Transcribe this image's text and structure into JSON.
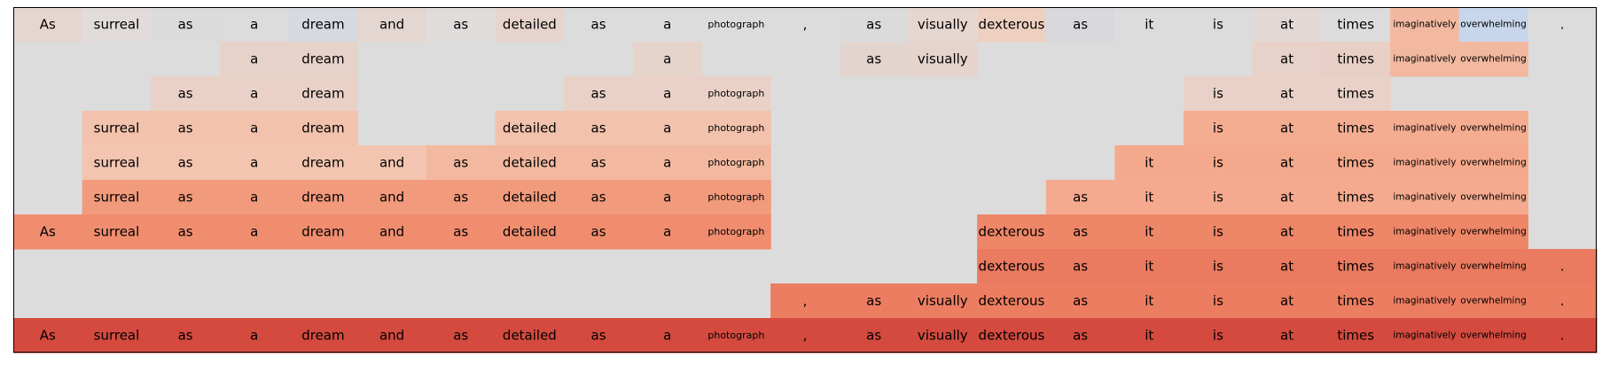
{
  "chart_data": {
    "type": "heatmap",
    "title": "",
    "xlabel": "",
    "ylabel": "",
    "tokens": [
      "As",
      "surreal",
      "as",
      "a",
      "dream",
      "and",
      "as",
      "detailed",
      "as",
      "a",
      "photograph",
      ",",
      "as",
      "visually",
      "dexterous",
      "as",
      "it",
      "is",
      "at",
      "times",
      "imaginatively",
      "overwhelming",
      "."
    ],
    "rows": [
      [
        "#e6d6d0",
        "#e1dbda",
        "#dcdbdb",
        "#dcdcdc",
        "#d6d9df",
        "#e4d7d2",
        "#e0dcdb",
        "#e7d4ce",
        "#dcdcdc",
        "#dcdcdc",
        "#dcdcdc",
        "#dcdcdc",
        "#dbdbdc",
        "#e6d6d0",
        "#eed0c1",
        "#d9d9dd",
        "#dcdcdc",
        "#dcdcdc",
        "#e2d8d6",
        "#dcdcdc",
        "#f2b9a0",
        "#c7d6eb",
        "#dcdcdc"
      ],
      [
        null,
        null,
        null,
        "#e6d2c9",
        "#e6d2c9",
        null,
        null,
        null,
        null,
        "#e6d3ca",
        null,
        null,
        "#e2d5cf",
        "#e5d3cc",
        null,
        null,
        null,
        null,
        "#e7d1c8",
        "#e8cfc5",
        "#f2b9a0",
        "#f2b9a0",
        null
      ],
      [
        null,
        null,
        "#e9d1c7",
        "#e9d1c7",
        "#e9d1c7",
        null,
        null,
        null,
        "#e9d1c7",
        "#e9d1c7",
        "#e9d1c7",
        null,
        null,
        null,
        null,
        null,
        null,
        "#e9d1c7",
        "#e9d1c7",
        "#e9d1c7",
        null,
        null,
        null
      ],
      [
        null,
        "#f2c2ad",
        "#f2c2ad",
        "#f2c2ad",
        "#f2c2ad",
        null,
        null,
        "#f2c2ad",
        "#f2c2ad",
        "#f2c2ad",
        "#f2c2ad",
        null,
        null,
        null,
        null,
        null,
        null,
        "#f5ad92",
        "#f5ad92",
        "#f5ad92",
        "#f5ad92",
        "#f5ad92",
        null
      ],
      [
        null,
        "#f3c5b1",
        "#f3c5b1",
        "#f3c5b1",
        "#f3c5b1",
        "#f3c5b1",
        "#f2b9a0",
        "#f2b9a0",
        "#f2b9a0",
        "#f2b9a0",
        "#f2b9a0",
        null,
        null,
        null,
        null,
        null,
        "#f5a98c",
        "#f5a98c",
        "#f5a98c",
        "#f5a98c",
        "#f5a98c",
        "#f5a98c",
        null
      ],
      [
        null,
        "#f29a7c",
        "#f29a7c",
        "#f29a7c",
        "#f29a7c",
        "#f29a7c",
        "#f29a7c",
        "#f29a7c",
        "#f29a7c",
        "#f29a7c",
        "#f29a7c",
        null,
        null,
        null,
        null,
        "#f5aa8f",
        "#f5aa8f",
        "#f5aa8f",
        "#f5aa8f",
        "#f5aa8f",
        "#f5aa8f",
        "#f5aa8f",
        null
      ],
      [
        "#f08d6f",
        "#f08d6f",
        "#f08d6f",
        "#f08d6f",
        "#f08d6f",
        "#f08d6f",
        "#f08d6f",
        "#f08d6f",
        "#f08d6f",
        "#f08d6f",
        "#f08d6f",
        null,
        null,
        null,
        "#ee8668",
        "#ee8668",
        "#ee8668",
        "#ee8668",
        "#ee8668",
        "#ee8668",
        "#ee8668",
        "#ee8668",
        null
      ],
      [
        null,
        null,
        null,
        null,
        null,
        null,
        null,
        null,
        null,
        null,
        null,
        null,
        null,
        null,
        "#ea7a60",
        "#ea7a60",
        "#ea7a60",
        "#ea7a60",
        "#ea7a60",
        "#ea7a60",
        "#ea7a60",
        "#ea7a60",
        "#ea7a60"
      ],
      [
        null,
        null,
        null,
        null,
        null,
        null,
        null,
        null,
        null,
        null,
        null,
        "#ec7d61",
        "#ec7d61",
        "#ec7d61",
        "#ec7d61",
        "#ec7d61",
        "#ec7d61",
        "#ec7d61",
        "#ec7d61",
        "#ec7d61",
        "#ec7d61",
        "#ec7d61",
        "#ec7d61"
      ],
      [
        "#d44a3f",
        "#d44a3f",
        "#d44a3f",
        "#d44a3f",
        "#d44a3f",
        "#d44a3f",
        "#d44a3f",
        "#d44a3f",
        "#d44a3f",
        "#d44a3f",
        "#d44a3f",
        "#d44a3f",
        "#d44a3f",
        "#d44a3f",
        "#d44a3f",
        "#d44a3f",
        "#d44a3f",
        "#d44a3f",
        "#d44a3f",
        "#d44a3f",
        "#d44a3f",
        "#d44a3f",
        "#d44a3f"
      ]
    ],
    "empty_color": "#dcdcdc",
    "grid": false,
    "legend": false
  }
}
